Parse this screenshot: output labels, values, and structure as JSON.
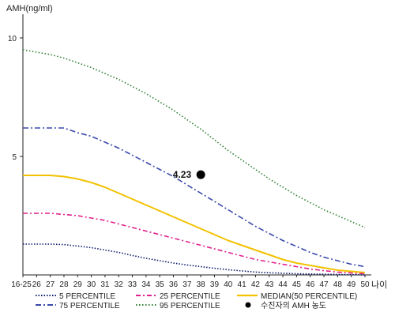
{
  "chart_data": {
    "type": "line",
    "ylabel": "AMH(ng/ml)",
    "xlabel": "나이",
    "categories": [
      "16-25",
      "26",
      "27",
      "28",
      "29",
      "30",
      "31",
      "32",
      "33",
      "34",
      "35",
      "36",
      "37",
      "38",
      "39",
      "40",
      "41",
      "42",
      "43",
      "44",
      "45",
      "46",
      "47",
      "48",
      "49",
      "50"
    ],
    "ylim": [
      0,
      11
    ],
    "yticks": [
      5,
      10
    ],
    "grid": false,
    "series": [
      {
        "name": "95 PERCENTILE",
        "color": "#2e7d32",
        "dash": "1.5,2.5",
        "values": [
          9.5,
          9.4,
          9.3,
          9.15,
          8.95,
          8.75,
          8.5,
          8.25,
          7.95,
          7.65,
          7.3,
          6.95,
          6.55,
          6.15,
          5.7,
          5.25,
          4.85,
          4.45,
          4.05,
          3.7,
          3.35,
          3.05,
          2.75,
          2.5,
          2.25,
          2.0
        ]
      },
      {
        "name": "75 PERCENTILE",
        "color": "#3949ab",
        "dash": "7,3,2,3",
        "values": [
          6.2,
          6.2,
          6.2,
          6.2,
          6.0,
          5.85,
          5.6,
          5.35,
          5.05,
          4.75,
          4.45,
          4.15,
          3.8,
          3.45,
          3.1,
          2.75,
          2.4,
          2.05,
          1.75,
          1.45,
          1.2,
          0.95,
          0.75,
          0.6,
          0.45,
          0.35
        ]
      },
      {
        "name": "MEDIAN(50 PERCENTILE)",
        "color": "#f2c200",
        "dash": "",
        "values": [
          4.2,
          4.2,
          4.2,
          4.15,
          4.05,
          3.9,
          3.7,
          3.45,
          3.2,
          2.95,
          2.7,
          2.45,
          2.2,
          1.95,
          1.7,
          1.45,
          1.25,
          1.05,
          0.85,
          0.65,
          0.5,
          0.4,
          0.3,
          0.2,
          0.15,
          0.1
        ]
      },
      {
        "name": "25 PERCENTILE",
        "color": "#e0208c",
        "dash": "6,3,2,3",
        "values": [
          2.6,
          2.6,
          2.6,
          2.55,
          2.5,
          2.4,
          2.3,
          2.15,
          2.0,
          1.85,
          1.7,
          1.55,
          1.4,
          1.25,
          1.1,
          0.95,
          0.8,
          0.65,
          0.55,
          0.45,
          0.35,
          0.25,
          0.18,
          0.12,
          0.08,
          0.05
        ]
      },
      {
        "name": "5 PERCENTILE",
        "color": "#0d1b6e",
        "dash": "1.5,2",
        "values": [
          1.3,
          1.3,
          1.3,
          1.28,
          1.22,
          1.15,
          1.05,
          0.95,
          0.82,
          0.7,
          0.6,
          0.5,
          0.42,
          0.35,
          0.28,
          0.22,
          0.17,
          0.12,
          0.09,
          0.07,
          0.05,
          0.04,
          0.03,
          0.02,
          0.01,
          0.0
        ]
      }
    ],
    "patient_point": {
      "name": "수진자의 AMH 농도",
      "x": "38",
      "y": 4.23,
      "label": "4.23",
      "color": "#000000"
    },
    "legend": {
      "position": "bottom",
      "items": [
        {
          "label": "5 PERCENTILE",
          "series": "5 PERCENTILE"
        },
        {
          "label": "25 PERCENTILE",
          "series": "25 PERCENTILE"
        },
        {
          "label": "MEDIAN(50 PERCENTILE)",
          "series": "MEDIAN(50 PERCENTILE)"
        },
        {
          "label": "75 PERCENTILE",
          "series": "75 PERCENTILE"
        },
        {
          "label": "95 PERCENTILE",
          "series": "95 PERCENTILE"
        },
        {
          "label": "수진자의 AMH 농도",
          "series": "patient_point"
        }
      ]
    }
  }
}
